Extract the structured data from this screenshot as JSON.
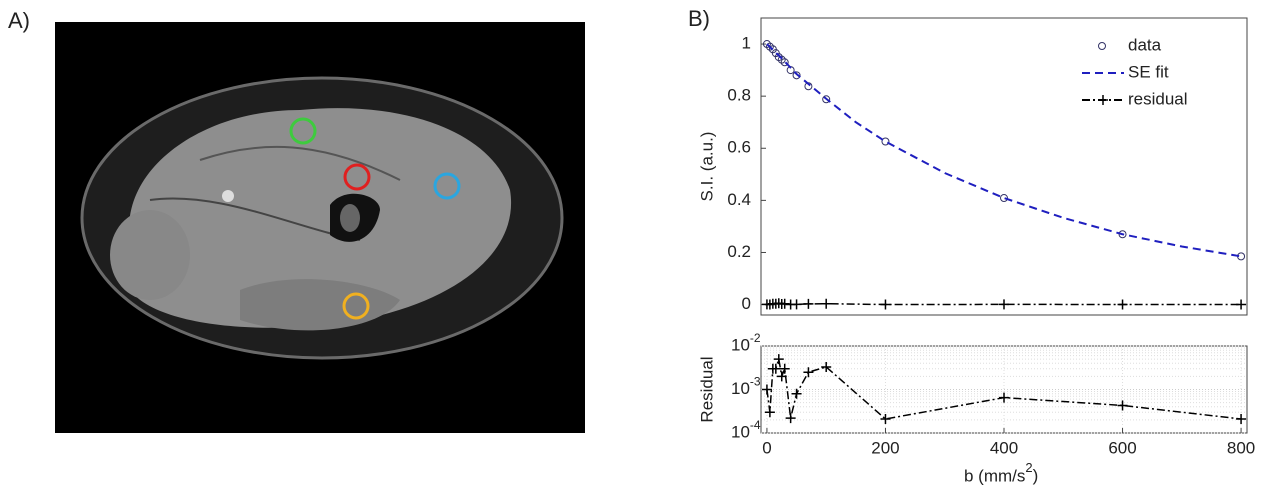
{
  "panel_labels": [
    "A)",
    "B)"
  ],
  "chart_data": [
    {
      "type": "line",
      "ylabel": "S.I. (a.u.)",
      "xlim": [
        -10,
        810
      ],
      "ylim": [
        -0.04,
        1.1
      ],
      "yticks": [
        0,
        0.2,
        0.4,
        0.6,
        0.8,
        1
      ],
      "legend": "upper right",
      "series": [
        {
          "name": "data",
          "color": "#333366",
          "style": "circles",
          "x": [
            0,
            5,
            10,
            15,
            20,
            25,
            30,
            40,
            50,
            70,
            100,
            200,
            400,
            600,
            800
          ],
          "values": [
            1.0,
            0.99,
            0.98,
            0.965,
            0.95,
            0.94,
            0.93,
            0.9,
            0.88,
            0.838,
            0.788,
            0.626,
            0.409,
            0.27,
            0.185
          ]
        },
        {
          "name": "SE fit",
          "color": "#1f1fbf",
          "style": "dashed",
          "x": [
            0,
            10,
            25,
            50,
            100,
            150,
            200,
            300,
            400,
            500,
            600,
            700,
            800
          ],
          "values": [
            1.0,
            0.978,
            0.945,
            0.885,
            0.79,
            0.7,
            0.626,
            0.505,
            0.409,
            0.333,
            0.27,
            0.223,
            0.185
          ]
        },
        {
          "name": "residual",
          "color": "#000000",
          "style": "dashdot-plus",
          "x": [
            0,
            5,
            10,
            15,
            20,
            25,
            30,
            40,
            50,
            70,
            100,
            200,
            400,
            600,
            800
          ],
          "values": [
            0.001,
            0.0003,
            0.003,
            0.003,
            0.005,
            0.002,
            0.003,
            0.00022,
            0.0008,
            0.0025,
            0.0033,
            0.00021,
            0.00065,
            0.00043,
            0.00021
          ]
        }
      ]
    },
    {
      "type": "line",
      "log_y": true,
      "grid": true,
      "ylabel": "Residual",
      "xlabel": {
        "text": "b (mm/s",
        "superscript": "2",
        "after": ")"
      },
      "xlim": [
        -10,
        810
      ],
      "ylim": [
        0.0001,
        0.01
      ],
      "xticks": [
        0,
        200,
        400,
        600,
        800
      ],
      "yticks": [
        {
          "value": 0.0001,
          "label": "10",
          "superscript": "-4"
        },
        {
          "value": 0.001,
          "label": "10",
          "superscript": "-3"
        },
        {
          "value": 0.01,
          "label": "10",
          "superscript": "-2"
        }
      ],
      "series": [
        {
          "name": "residual",
          "color": "#000000",
          "style": "dashdot-plus",
          "x": [
            0,
            5,
            10,
            15,
            20,
            25,
            30,
            40,
            50,
            70,
            100,
            200,
            400,
            600,
            800
          ],
          "values": [
            0.001,
            0.0003,
            0.003,
            0.003,
            0.005,
            0.002,
            0.003,
            0.00022,
            0.0008,
            0.0025,
            0.0033,
            0.00021,
            0.00065,
            0.00043,
            0.00021
          ]
        }
      ]
    }
  ]
}
